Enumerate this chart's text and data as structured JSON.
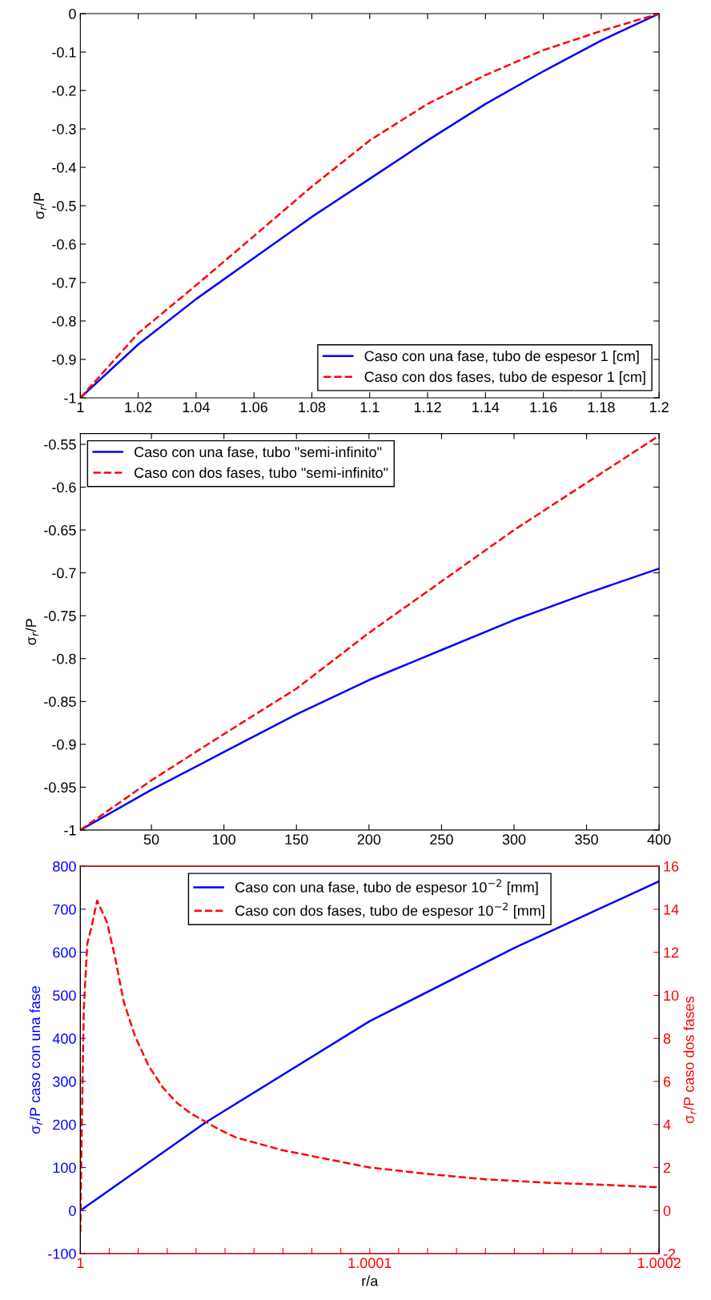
{
  "chart_data": [
    {
      "type": "line",
      "ylabel": "σ$_{r}$/P",
      "xlim": [
        1,
        1.2
      ],
      "xticks": [
        1,
        1.02,
        1.04,
        1.06,
        1.08,
        1.1,
        1.12,
        1.14,
        1.16,
        1.18,
        1.2
      ],
      "ylim": [
        -1,
        0
      ],
      "yticks": [
        -1,
        -0.9,
        -0.8,
        -0.7,
        -0.6,
        -0.5,
        -0.4,
        -0.3,
        -0.2,
        -0.1,
        0
      ],
      "legend": "lower right",
      "series": [
        {
          "name": "Caso con una fase, tubo de espesor 1 [cm]",
          "color": "#0000ff",
          "line_style": "solid",
          "x": [
            1,
            1.02,
            1.04,
            1.06,
            1.08,
            1.1,
            1.12,
            1.14,
            1.16,
            1.18,
            1.2
          ],
          "values": [
            -1,
            -0.861,
            -0.743,
            -0.636,
            -0.529,
            -0.43,
            -0.33,
            -0.235,
            -0.15,
            -0.07,
            0
          ]
        },
        {
          "name": "Caso con dos fases, tubo de espesor 1 [cm]",
          "color": "#ff0000",
          "line_style": "dashed",
          "x": [
            1,
            1.02,
            1.04,
            1.06,
            1.08,
            1.1,
            1.12,
            1.14,
            1.16,
            1.18,
            1.2
          ],
          "values": [
            -1,
            -0.832,
            -0.707,
            -0.579,
            -0.45,
            -0.33,
            -0.235,
            -0.16,
            -0.095,
            -0.045,
            0
          ]
        }
      ]
    },
    {
      "type": "line",
      "ylabel": "σ$_{r}$/P",
      "xlim": [
        1,
        400
      ],
      "xticks": [
        50,
        100,
        150,
        200,
        250,
        300,
        350,
        400
      ],
      "ylim": [
        -1,
        -0.5375
      ],
      "yticks": [
        -1,
        -0.95,
        -0.9,
        -0.85,
        -0.8,
        -0.75,
        -0.7,
        -0.65,
        -0.6,
        -0.55
      ],
      "legend": "top left",
      "series": [
        {
          "name": "Caso con una fase, tubo \"semi-infinito\"",
          "color": "#0000ff",
          "line_style": "solid",
          "x": [
            1,
            50,
            100,
            150,
            200,
            250,
            300,
            350,
            400
          ],
          "values": [
            -1,
            -0.953,
            -0.909,
            -0.865,
            -0.825,
            -0.79,
            -0.755,
            -0.724,
            -0.695
          ]
        },
        {
          "name": "Caso con dos fases, tubo \"semi-infinito\"",
          "color": "#ff0000",
          "line_style": "dashed",
          "x": [
            1,
            50,
            100,
            150,
            200,
            250,
            300,
            350,
            400
          ],
          "values": [
            -1,
            -0.942,
            -0.888,
            -0.835,
            -0.77,
            -0.71,
            -0.65,
            -0.595,
            -0.54
          ]
        }
      ]
    },
    {
      "type": "line",
      "xlabel": "r/a",
      "ylabel": "σ$_{r}$/P caso con una fase",
      "y2label": "σ$_{r}$/P caso dos fases",
      "xlim": [
        1,
        1.0002
      ],
      "xticks": [
        1,
        {
          "value": 1.00001,
          "label": null
        },
        {
          "value": 1.00002,
          "label": null
        },
        {
          "value": 1.00003,
          "label": null
        },
        {
          "value": 1.00004,
          "label": null
        },
        {
          "value": 1.00005,
          "label": null
        },
        {
          "value": 1.00006,
          "label": null
        },
        {
          "value": 1.00007,
          "label": null
        },
        {
          "value": 1.00008,
          "label": null
        },
        {
          "value": 1.00009,
          "label": null
        },
        1.0001,
        {
          "value": 1.00011,
          "label": null
        },
        {
          "value": 1.00012,
          "label": null
        },
        {
          "value": 1.00013,
          "label": null
        },
        {
          "value": 1.00014,
          "label": null
        },
        {
          "value": 1.00015,
          "label": null
        },
        {
          "value": 1.00016,
          "label": null
        },
        {
          "value": 1.00017,
          "label": null
        },
        {
          "value": 1.00018,
          "label": null
        },
        {
          "value": 1.00019,
          "label": null
        },
        1.0002
      ],
      "ylim": [
        -100,
        800
      ],
      "yticks": [
        -100,
        0,
        100,
        200,
        300,
        400,
        500,
        600,
        700,
        800
      ],
      "y2lim": [
        -2,
        16
      ],
      "y2ticks": [
        -2,
        0,
        2,
        4,
        6,
        8,
        10,
        12,
        14,
        16
      ],
      "legend": "top",
      "series": [
        {
          "name": "Caso con una fase, tubo de espesor 10$^{−2}$ [mm]",
          "color": "#0000ff",
          "line_style": "solid",
          "x": [
            1,
            1.0000436,
            1.0001,
            1.00015,
            1.0002
          ],
          "values": [
            0,
            206,
            440,
            610,
            765
          ]
        },
        {
          "name": "Caso con dos fases, tubo de espesor 10$^{−2}$ [mm]",
          "color": "#ff0000",
          "line_style": "dashed",
          "axis": "y2",
          "x": [
            1,
            1.0000005,
            1.0000012,
            1.0000024,
            1.0000039,
            1.0000058,
            1.0000092,
            1.0000121,
            1.000015,
            1.0000189,
            1.0000237,
            1.0000286,
            1.0000334,
            1.0000383,
            1.0000436,
            1.0000479,
            1.0000537,
            1.00007,
            1.0001,
            1.00012,
            1.00014,
            1.00016,
            1.00018,
            1.0002
          ],
          "values": [
            -1,
            4,
            9.4,
            12.4,
            13.2,
            14.4,
            13.4,
            11.7,
            9.7,
            8.1,
            6.7,
            5.7,
            5.0,
            4.5,
            4.1,
            3.77,
            3.4,
            2.8,
            2.0,
            1.7,
            1.45,
            1.3,
            1.2,
            1.08
          ]
        }
      ]
    }
  ]
}
